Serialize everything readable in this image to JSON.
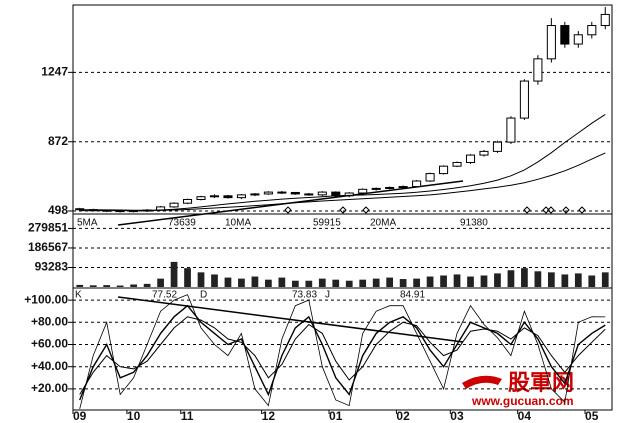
{
  "chart_data": [
    {
      "type": "candlestick",
      "open": [
        510,
        505,
        502,
        500,
        498,
        500,
        503,
        520,
        540,
        560,
        575,
        580,
        570,
        585,
        590,
        600,
        598,
        590,
        585,
        600,
        580,
        595,
        615,
        620,
        625,
        630,
        660,
        700,
        740,
        760,
        800,
        820,
        870,
        1000,
        1200,
        1320,
        1500,
        1400,
        1450,
        1500
      ],
      "high": [
        515,
        510,
        506,
        503,
        504,
        508,
        525,
        545,
        565,
        580,
        588,
        585,
        590,
        595,
        605,
        606,
        600,
        595,
        605,
        604,
        600,
        620,
        625,
        630,
        636,
        665,
        705,
        745,
        765,
        805,
        828,
        878,
        1010,
        1210,
        1340,
        1540,
        1520,
        1470,
        1520,
        1600
      ],
      "low": [
        498,
        495,
        492,
        490,
        490,
        492,
        498,
        515,
        535,
        555,
        568,
        565,
        562,
        578,
        585,
        590,
        585,
        580,
        578,
        575,
        572,
        590,
        608,
        615,
        620,
        625,
        655,
        695,
        735,
        752,
        792,
        812,
        860,
        990,
        1180,
        1300,
        1380,
        1380,
        1430,
        1480
      ],
      "close": [
        505,
        502,
        500,
        498,
        500,
        503,
        520,
        540,
        560,
        575,
        580,
        570,
        585,
        590,
        600,
        598,
        590,
        585,
        600,
        580,
        595,
        615,
        620,
        625,
        630,
        660,
        700,
        740,
        760,
        800,
        820,
        870,
        1000,
        1200,
        1320,
        1500,
        1400,
        1450,
        1500,
        1560
      ],
      "lines": [
        {
          "values": [
            505,
            505,
            504,
            503,
            502,
            502,
            503,
            507,
            513,
            520,
            528,
            536,
            543,
            550,
            556,
            562,
            567,
            571,
            575,
            580,
            582,
            584,
            587,
            590,
            594,
            599,
            606,
            614,
            623,
            634,
            648,
            665,
            688,
            720,
            763,
            813,
            868,
            920,
            972,
            1020
          ]
        },
        {
          "values": [
            500,
            500,
            500,
            500,
            500,
            500,
            501,
            503,
            506,
            510,
            514,
            518,
            522,
            527,
            532,
            537,
            542,
            547,
            552,
            556,
            560,
            564,
            568,
            572,
            576,
            580,
            585,
            592,
            600,
            608,
            617,
            626,
            637,
            651,
            669,
            690,
            715,
            745,
            778,
            812
          ]
        }
      ],
      "ylim": [
        487,
        1611
      ],
      "yticks": [
        498,
        872,
        1247
      ],
      "grid": true
    },
    {
      "type": "bar",
      "values": [
        10000,
        8000,
        9000,
        7000,
        12000,
        15000,
        40000,
        120000,
        90000,
        70000,
        60000,
        45000,
        40000,
        50000,
        35000,
        45000,
        30000,
        30000,
        40000,
        35000,
        30000,
        35000,
        40000,
        45000,
        38000,
        40000,
        50000,
        55000,
        60000,
        50000,
        55000,
        65000,
        80000,
        90000,
        75000,
        70000,
        60000,
        65000,
        55000,
        70000
      ],
      "ma_labels": [
        {
          "name": "5MA",
          "value": 73639
        },
        {
          "name": "10MA",
          "value": 59915
        },
        {
          "name": "20MA",
          "value": 91380
        }
      ],
      "ylim": [
        0,
        344000
      ],
      "yticks": [
        93283,
        186567,
        279851
      ],
      "grid": true
    },
    {
      "type": "line",
      "categories": [
        "09",
        null,
        null,
        null,
        "10",
        null,
        null,
        null,
        "11",
        null,
        null,
        null,
        null,
        null,
        "12",
        null,
        null,
        null,
        null,
        "01",
        null,
        null,
        null,
        null,
        "02",
        null,
        null,
        null,
        "03",
        null,
        null,
        null,
        null,
        "04",
        null,
        null,
        null,
        null,
        "05",
        null
      ],
      "series": [
        {
          "name": "K",
          "last": 77.52,
          "values": [
            10,
            40,
            60,
            30,
            35,
            50,
            70,
            85,
            95,
            80,
            70,
            60,
            65,
            40,
            15,
            50,
            75,
            85,
            60,
            30,
            15,
            50,
            70,
            80,
            85,
            75,
            55,
            40,
            60,
            80,
            75,
            70,
            60,
            80,
            65,
            40,
            25,
            60,
            70,
            77.52
          ]
        },
        {
          "name": "D",
          "last": 73.83,
          "values": [
            15,
            35,
            50,
            40,
            38,
            45,
            60,
            75,
            85,
            82,
            75,
            65,
            62,
            50,
            30,
            42,
            65,
            78,
            70,
            45,
            28,
            40,
            60,
            72,
            80,
            77,
            62,
            50,
            55,
            72,
            74,
            72,
            65,
            75,
            68,
            50,
            35,
            50,
            62,
            73.83
          ]
        },
        {
          "name": "J",
          "last": 84.91,
          "values": [
            2,
            50,
            80,
            15,
            30,
            60,
            90,
            100,
            105,
            75,
            60,
            50,
            70,
            20,
            5,
            65,
            95,
            100,
            40,
            10,
            5,
            70,
            90,
            95,
            95,
            70,
            45,
            20,
            70,
            95,
            78,
            66,
            50,
            90,
            60,
            20,
            8,
            80,
            85,
            84.91
          ]
        }
      ],
      "ylim": [
        1,
        110
      ],
      "yticks": [
        {
          "value": 20,
          "label": "+20.00"
        },
        {
          "value": 40,
          "label": "+40.00"
        },
        {
          "value": 60,
          "label": "+60.00"
        },
        {
          "value": 80,
          "label": "+80.00"
        },
        {
          "value": 100,
          "label": "+100.00"
        }
      ],
      "grid": true
    }
  ],
  "watermark": {
    "brand": "股軍网",
    "url": "www.gucuan.com"
  }
}
